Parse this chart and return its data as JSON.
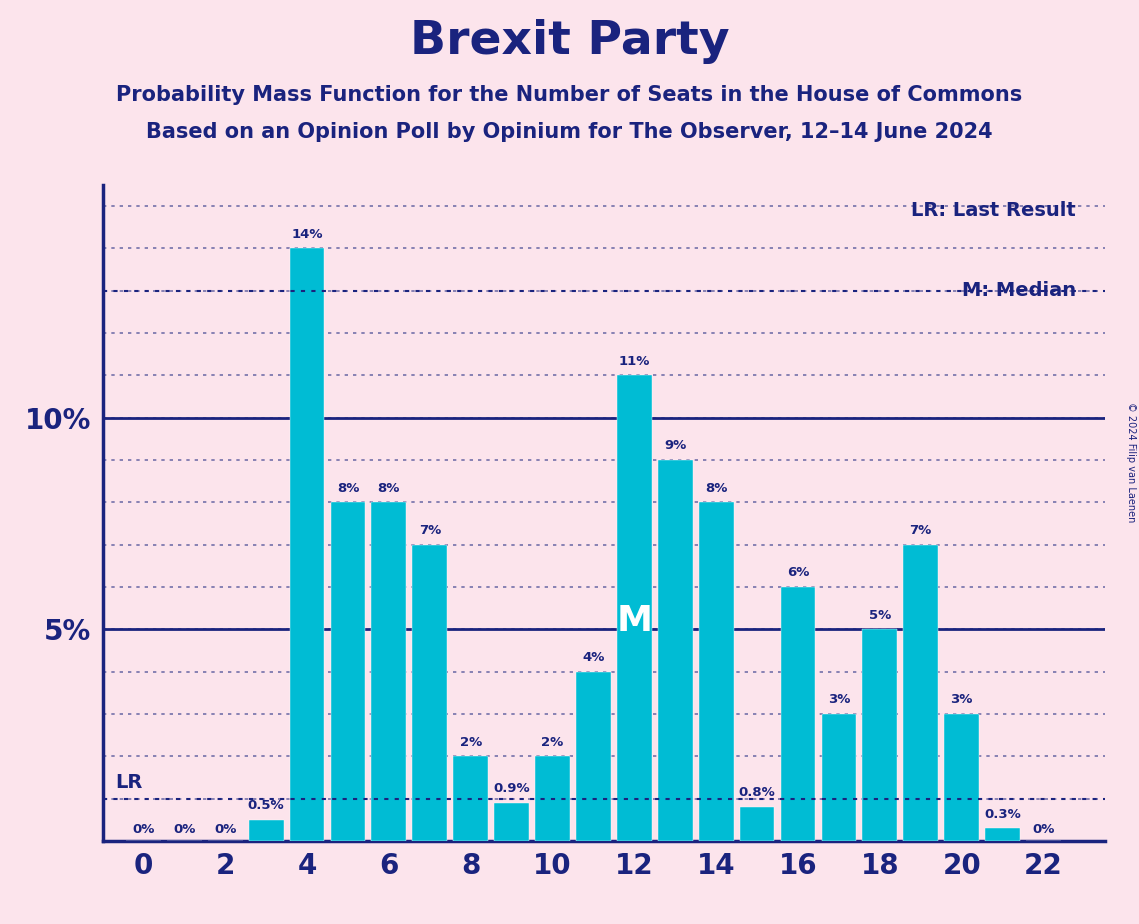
{
  "title": "Brexit Party",
  "subtitle1": "Probability Mass Function for the Number of Seats in the House of Commons",
  "subtitle2": "Based on an Opinion Poll by Opinium for The Observer, 12–14 June 2024",
  "copyright": "© 2024 Filip van Laenen",
  "background_color": "#fce4ec",
  "bar_color": "#00BCD4",
  "title_color": "#1a237e",
  "seats": [
    0,
    1,
    2,
    3,
    4,
    5,
    6,
    7,
    8,
    9,
    10,
    11,
    12,
    13,
    14,
    15,
    16,
    17,
    18,
    19,
    20,
    21,
    22
  ],
  "probabilities": [
    0.0,
    0.0,
    0.0,
    0.5,
    14.0,
    8.0,
    8.0,
    7.0,
    2.0,
    0.9,
    2.0,
    4.0,
    11.0,
    9.0,
    8.0,
    0.8,
    6.0,
    3.0,
    5.0,
    7.0,
    3.0,
    0.3,
    0.0
  ],
  "labels": [
    "0%",
    "0%",
    "0%",
    "0.5%",
    "14%",
    "8%",
    "8%",
    "7%",
    "2%",
    "0.9%",
    "2%",
    "4%",
    "11%",
    "9%",
    "8%",
    "0.8%",
    "6%",
    "3%",
    "5%",
    "7%",
    "3%",
    "0.3%",
    "0%"
  ],
  "ylim_max": 15.5,
  "xtick_positions": [
    0,
    2,
    4,
    6,
    8,
    10,
    12,
    14,
    16,
    18,
    20,
    22
  ],
  "lr_level": 1.0,
  "median_level": 13.0,
  "median_bar": 12,
  "lr_label": "LR: Last Result",
  "median_label": "M: Median",
  "solid_lines": [
    5,
    10
  ],
  "dotted_lines_step": 1,
  "label_fontsize": 9.5,
  "tick_fontsize": 20,
  "title_fontsize": 34,
  "subtitle_fontsize": 15,
  "legend_fontsize": 14
}
